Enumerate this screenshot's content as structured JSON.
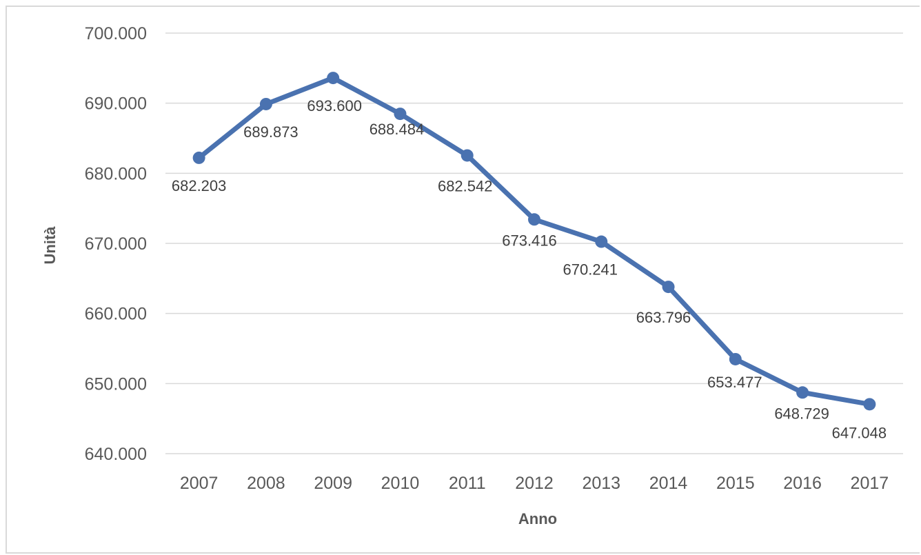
{
  "chart_data": {
    "type": "line",
    "title": "",
    "xlabel": "Anno",
    "ylabel": "Unità",
    "categories": [
      "2007",
      "2008",
      "2009",
      "2010",
      "2011",
      "2012",
      "2013",
      "2014",
      "2015",
      "2016",
      "2017"
    ],
    "series": [
      {
        "values": [
          682203,
          689873,
          693600,
          688484,
          682542,
          673416,
          670241,
          663796,
          653477,
          648729,
          647048
        ],
        "labels": [
          "682.203",
          "689.873",
          "693.600",
          "688.484",
          "682.542",
          "673.416",
          "670.241",
          "663.796",
          "653.477",
          "648.729",
          "647.048"
        ],
        "color": "#4a72b0"
      }
    ],
    "ylim": [
      640000,
      700000
    ],
    "yticks": [
      640000,
      650000,
      660000,
      670000,
      680000,
      690000,
      700000
    ],
    "ytick_labels": [
      "640.000",
      "650.000",
      "660.000",
      "670.000",
      "680.000",
      "690.000",
      "700.000"
    ],
    "grid": true,
    "gridColor": "#d9d9d9",
    "legend": "none"
  }
}
